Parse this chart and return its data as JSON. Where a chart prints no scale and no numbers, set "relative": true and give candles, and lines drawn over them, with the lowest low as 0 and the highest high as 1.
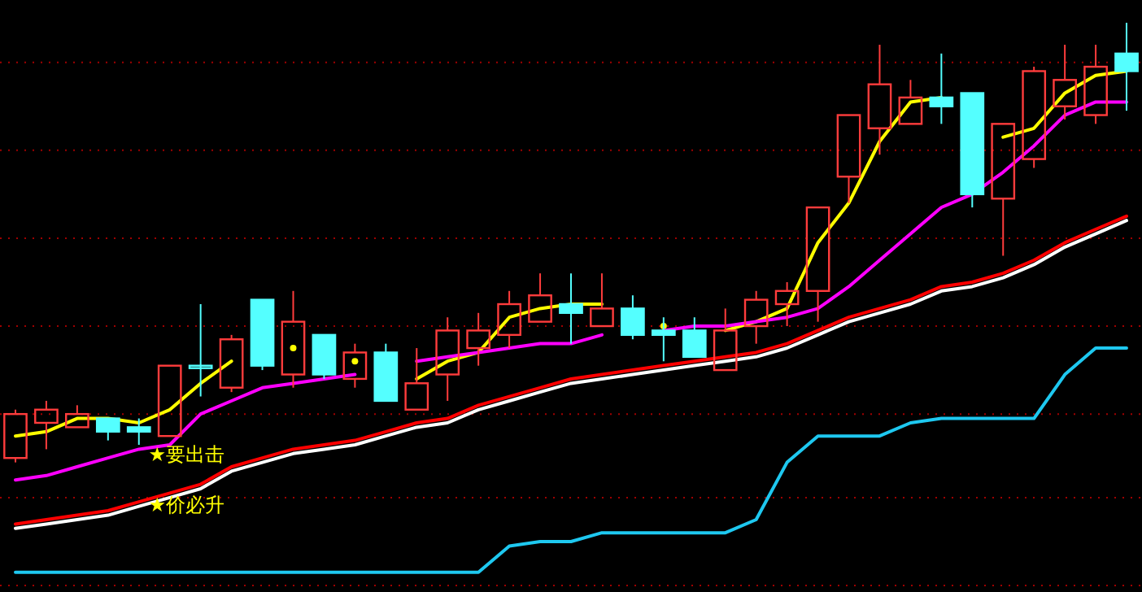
{
  "chart_data": {
    "type": "candlestick",
    "relative": true,
    "categories": [
      null,
      null,
      null,
      null,
      null,
      null,
      null,
      null,
      null,
      null,
      null,
      null,
      null,
      null,
      null,
      null,
      null,
      null,
      null,
      null,
      null,
      null,
      null,
      null,
      null,
      null,
      null,
      null,
      null,
      null,
      null,
      null,
      null,
      null,
      null,
      null,
      null
    ],
    "ohlc": [
      [
        0.01,
        0.12,
        0,
        0.11
      ],
      [
        0.09,
        0.14,
        0.03,
        0.12
      ],
      [
        0.08,
        0.13,
        0.08,
        0.11
      ],
      [
        0.1,
        0.1,
        0.05,
        0.07
      ],
      [
        0.08,
        0.1,
        0.04,
        0.07
      ],
      [
        0.06,
        0.22,
        0.06,
        0.22
      ],
      [
        0.22,
        0.36,
        0.15,
        0.22
      ],
      [
        0.17,
        0.29,
        0.16,
        0.28
      ],
      [
        0.37,
        0.37,
        0.21,
        0.22
      ],
      [
        0.2,
        0.39,
        0.17,
        0.32
      ],
      [
        0.29,
        0.29,
        0.19,
        0.2
      ],
      [
        0.19,
        0.27,
        0.17,
        0.25
      ],
      [
        0.25,
        0.27,
        0.14,
        0.14
      ],
      [
        0.12,
        0.26,
        0.12,
        0.18
      ],
      [
        0.2,
        0.33,
        0.14,
        0.3
      ],
      [
        0.26,
        0.34,
        0.22,
        0.3
      ],
      [
        0.29,
        0.39,
        0.26,
        0.36
      ],
      [
        0.32,
        0.43,
        0.32,
        0.38
      ],
      [
        0.36,
        0.43,
        0.27,
        0.34
      ],
      [
        0.31,
        0.43,
        0.31,
        0.35
      ],
      [
        0.35,
        0.38,
        0.28,
        0.29
      ],
      [
        0.3,
        0.33,
        0.23,
        0.29
      ],
      [
        0.3,
        0.33,
        0.24,
        0.24
      ],
      [
        0.21,
        0.35,
        0.21,
        0.3
      ],
      [
        0.31,
        0.39,
        0.27,
        0.37
      ],
      [
        0.36,
        0.41,
        0.31,
        0.39
      ],
      [
        0.39,
        0.58,
        0.32,
        0.58
      ],
      [
        0.65,
        0.79,
        0.59,
        0.79
      ],
      [
        0.76,
        0.95,
        0.7,
        0.86
      ],
      [
        0.77,
        0.87,
        0.77,
        0.83
      ],
      [
        0.83,
        0.93,
        0.77,
        0.81
      ],
      [
        0.84,
        0.84,
        0.58,
        0.61
      ],
      [
        0.6,
        0.77,
        0.47,
        0.77
      ],
      [
        0.69,
        0.9,
        0.67,
        0.89
      ],
      [
        0.81,
        0.95,
        0.78,
        0.87
      ],
      [
        0.79,
        0.95,
        0.77,
        0.9
      ],
      [
        0.93,
        1.0,
        0.8,
        0.89
      ]
    ],
    "colors": [
      "#ff3c3c",
      "#ff3c3c",
      "#ff3c3c",
      "#54ffff",
      "#54ffff",
      "#ff3c3c",
      "#54ffff",
      "#ff3c3c",
      "#54ffff",
      "#ff3c3c",
      "#54ffff",
      "#ff3c3c",
      "#54ffff",
      "#ff3c3c",
      "#ff3c3c",
      "#ff3c3c",
      "#ff3c3c",
      "#ff3c3c",
      "#54ffff",
      "#ff3c3c",
      "#54ffff",
      "#54ffff",
      "#54ffff",
      "#ff3c3c",
      "#ff3c3c",
      "#ff3c3c",
      "#ff3c3c",
      "#ff3c3c",
      "#ff3c3c",
      "#ff3c3c",
      "#54ffff",
      "#54ffff",
      "#ff3c3c",
      "#ff3c3c",
      "#ff3c3c",
      "#ff3c3c",
      "#54ffff"
    ],
    "series": [
      {
        "type": "line",
        "color": "#ffff00",
        "values": [
          0.06,
          0.07,
          0.1,
          0.1,
          0.09,
          0.12,
          0.18,
          0.23,
          null,
          0.26,
          null,
          0.23,
          null,
          0.19,
          0.23,
          0.25,
          0.33,
          0.35,
          0.36,
          0.36,
          null,
          0.31,
          null,
          0.3,
          0.32,
          0.35,
          0.5,
          0.59,
          0.73,
          0.82,
          0.83,
          null,
          0.74,
          0.76,
          0.84,
          0.88,
          0.89
        ]
      },
      {
        "type": "line",
        "color": "#ff00ff",
        "values": [
          -0.04,
          -0.03,
          -0.01,
          0.01,
          0.03,
          0.04,
          0.11,
          0.14,
          0.17,
          0.18,
          0.19,
          0.2,
          null,
          0.23,
          0.24,
          0.25,
          0.26,
          0.27,
          0.27,
          0.29,
          null,
          0.3,
          0.31,
          0.31,
          0.32,
          0.33,
          0.35,
          0.4,
          0.46,
          0.52,
          0.58,
          0.61,
          0.66,
          0.72,
          0.79,
          0.82,
          0.82
        ]
      },
      {
        "type": "line",
        "color": "#ffffff",
        "values": [
          -0.15,
          -0.14,
          -0.13,
          -0.12,
          -0.1,
          -0.08,
          -0.06,
          -0.02,
          0.0,
          0.02,
          0.03,
          0.04,
          0.06,
          0.08,
          0.09,
          0.12,
          0.14,
          0.16,
          0.18,
          0.19,
          0.2,
          0.21,
          0.22,
          0.23,
          0.24,
          0.26,
          0.29,
          0.32,
          0.34,
          0.36,
          0.39,
          0.4,
          0.42,
          0.45,
          0.49,
          0.52,
          0.55
        ]
      },
      {
        "type": "line",
        "color": "#ff0000",
        "values": [
          -0.14,
          -0.13,
          -0.12,
          -0.11,
          -0.09,
          -0.07,
          -0.05,
          -0.01,
          0.01,
          0.03,
          0.04,
          0.05,
          0.07,
          0.09,
          0.1,
          0.13,
          0.15,
          0.17,
          0.19,
          0.2,
          0.21,
          0.22,
          0.23,
          0.24,
          0.25,
          0.27,
          0.3,
          0.33,
          0.35,
          0.37,
          0.4,
          0.41,
          0.43,
          0.46,
          0.5,
          0.53,
          0.56
        ]
      },
      {
        "type": "line",
        "color": "#1ec8f0",
        "values": [
          -0.25,
          -0.25,
          -0.25,
          -0.25,
          -0.25,
          -0.25,
          -0.25,
          -0.25,
          -0.25,
          -0.25,
          -0.25,
          -0.25,
          -0.25,
          -0.25,
          -0.25,
          -0.25,
          -0.19,
          -0.18,
          -0.18,
          -0.16,
          -0.16,
          -0.16,
          -0.16,
          -0.16,
          -0.13,
          0.0,
          0.06,
          0.06,
          0.06,
          0.09,
          0.1,
          0.1,
          0.1,
          0.1,
          0.2,
          0.26,
          0.26
        ]
      }
    ],
    "ref_lines": [
      {
        "axis": "y",
        "value": 0.91,
        "color": "#a00000",
        "line_style": "dotted"
      },
      {
        "axis": "y",
        "value": 0.71,
        "color": "#a00000",
        "line_style": "dotted"
      },
      {
        "axis": "y",
        "value": 0.51,
        "color": "#a00000",
        "line_style": "dotted"
      },
      {
        "axis": "y",
        "value": 0.31,
        "color": "#a00000",
        "line_style": "dotted"
      },
      {
        "axis": "y",
        "value": 0.11,
        "color": "#a00000",
        "line_style": "dotted"
      },
      {
        "axis": "y",
        "value": -0.08,
        "color": "#a00000",
        "line_style": "dotted"
      },
      {
        "axis": "y",
        "value": -0.28,
        "color": "#a00000",
        "line_style": "dotted"
      }
    ],
    "annotations": [
      "★要出击",
      "★价必升"
    ]
  }
}
